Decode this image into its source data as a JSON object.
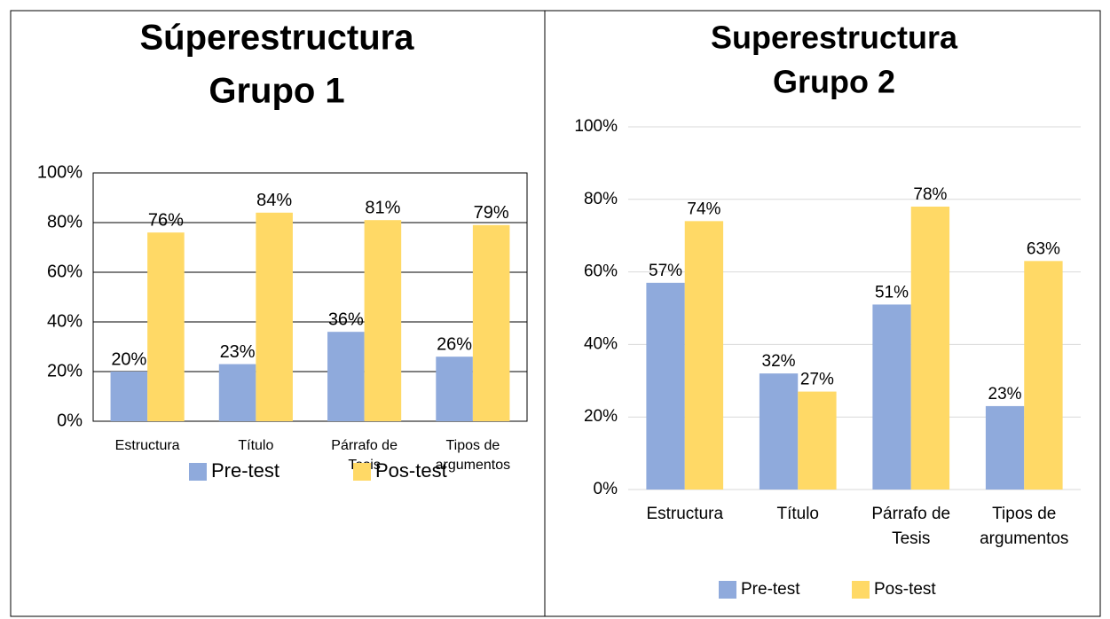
{
  "chart_data": [
    {
      "type": "bar",
      "title": [
        "Súperestructura",
        "Grupo 1"
      ],
      "categories": [
        [
          "Estructura"
        ],
        [
          "Título"
        ],
        [
          "Párrafo de",
          "Tesis"
        ],
        [
          "Tipos de",
          "argumentos"
        ]
      ],
      "series": [
        {
          "name": "Pre-test",
          "color": "#8faadc",
          "values": [
            20,
            23,
            36,
            26
          ],
          "value_labels": [
            "20%",
            "23%",
            "36%",
            "26%"
          ]
        },
        {
          "name": "Pos-test",
          "color": "#ffd966",
          "values": [
            76,
            84,
            81,
            79
          ],
          "value_labels": [
            "76%",
            "84%",
            "81%",
            "79%"
          ]
        }
      ],
      "ylim": [
        0,
        100
      ],
      "yticks": [
        {
          "value": 0,
          "label": "0%"
        },
        {
          "value": 20,
          "label": "20%"
        },
        {
          "value": 40,
          "label": "40%"
        },
        {
          "value": 60,
          "label": "60%"
        },
        {
          "value": 80,
          "label": "80%"
        },
        {
          "value": 100,
          "label": "100%"
        }
      ],
      "grid": true,
      "legend": "bottom"
    },
    {
      "type": "bar",
      "title": [
        "Superestructura",
        "Grupo 2"
      ],
      "categories": [
        [
          "Estructura"
        ],
        [
          "Título"
        ],
        [
          "Párrafo de",
          "Tesis"
        ],
        [
          "Tipos de",
          "argumentos"
        ]
      ],
      "series": [
        {
          "name": "Pre-test",
          "color": "#8faadc",
          "values": [
            57,
            32,
            51,
            23
          ],
          "value_labels": [
            "57%",
            "32%",
            "51%",
            "23%"
          ]
        },
        {
          "name": "Pos-test",
          "color": "#ffd966",
          "values": [
            74,
            27,
            78,
            63
          ],
          "value_labels": [
            "74%",
            "27%",
            "78%",
            "63%"
          ]
        }
      ],
      "ylim": [
        0,
        100
      ],
      "yticks": [
        {
          "value": 0,
          "label": "0%"
        },
        {
          "value": 20,
          "label": "20%"
        },
        {
          "value": 40,
          "label": "40%"
        },
        {
          "value": 60,
          "label": "60%"
        },
        {
          "value": 80,
          "label": "80%"
        },
        {
          "value": 100,
          "label": "100%"
        }
      ],
      "grid": true,
      "legend": "bottom"
    }
  ]
}
